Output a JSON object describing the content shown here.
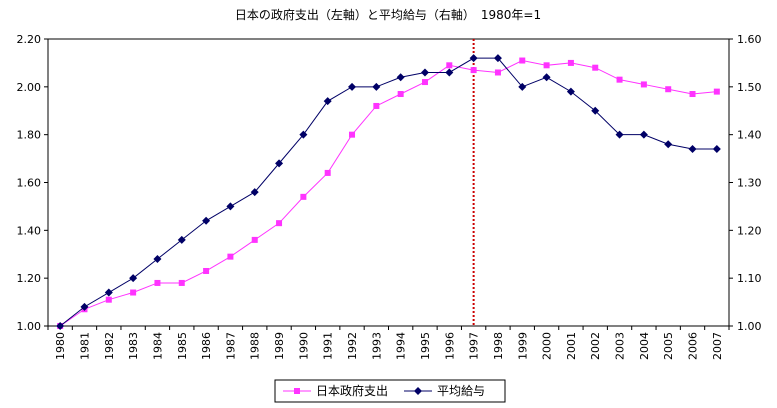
{
  "chart_data": {
    "type": "line",
    "title": "日本の政府支出（左軸）と平均給与（右軸）　1980年=1",
    "categories": [
      "1980",
      "1981",
      "1982",
      "1983",
      "1984",
      "1985",
      "1986",
      "1987",
      "1988",
      "1989",
      "1990",
      "1991",
      "1992",
      "1993",
      "1994",
      "1995",
      "1996",
      "1997",
      "1998",
      "1999",
      "2000",
      "2001",
      "2002",
      "2003",
      "2004",
      "2005",
      "2006",
      "2007"
    ],
    "y_left": {
      "ylim": [
        1.0,
        2.2
      ],
      "ticks": [
        "1.00",
        "1.20",
        "1.40",
        "1.60",
        "1.80",
        "2.00",
        "2.20"
      ]
    },
    "y_right": {
      "ylim": [
        1.0,
        1.6
      ],
      "ticks": [
        "1.00",
        "1.10",
        "1.20",
        "1.30",
        "1.40",
        "1.50",
        "1.60"
      ]
    },
    "series": [
      {
        "name": "日本政府支出",
        "axis": "left",
        "color": "#ff33ff",
        "marker": "square",
        "values": [
          1.0,
          1.07,
          1.11,
          1.14,
          1.18,
          1.18,
          1.23,
          1.29,
          1.36,
          1.43,
          1.54,
          1.64,
          1.8,
          1.92,
          1.97,
          2.02,
          2.09,
          2.07,
          2.06,
          2.11,
          2.09,
          2.1,
          2.08,
          2.03,
          2.01,
          1.99,
          1.97,
          1.98
        ]
      },
      {
        "name": "平均給与",
        "axis": "right",
        "color": "#000066",
        "marker": "diamond",
        "values": [
          1.0,
          1.04,
          1.07,
          1.1,
          1.14,
          1.18,
          1.22,
          1.25,
          1.28,
          1.34,
          1.4,
          1.47,
          1.5,
          1.5,
          1.52,
          1.53,
          1.53,
          1.56,
          1.56,
          1.5,
          1.52,
          1.49,
          1.45,
          1.4,
          1.4,
          1.38,
          1.37,
          1.37
        ]
      }
    ],
    "reference_line": {
      "category": "1997",
      "color": "#cc0000",
      "style": "dotted"
    },
    "legend": {
      "placement": "bottom-center"
    },
    "grid": false
  }
}
